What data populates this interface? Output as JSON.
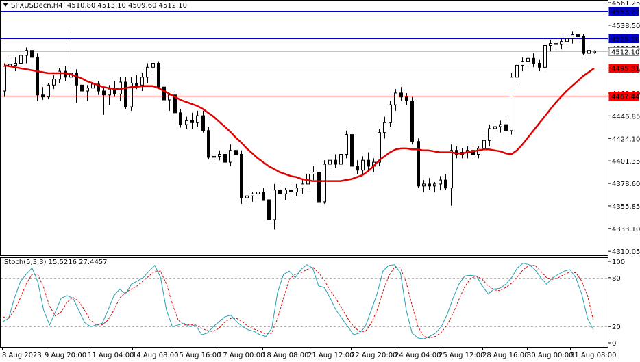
{
  "header": {
    "symbol": "SPXUSDecn,H4",
    "ohlc": "4510.80 4513.10 4509.60 4512.10"
  },
  "stoch_header": {
    "label": "Stoch(5,3,3) 15.5216 27.4457"
  },
  "colors": {
    "price_line": "#ff0000",
    "ma_line": "#e00000",
    "stoch_main": "#20a0b0",
    "stoch_signal": "#e00000",
    "blue_line": "#0000cc",
    "candle": "#000000",
    "grid_dash": "#b0b0b0"
  },
  "chart_data": [
    {
      "type": "candlestick",
      "title": "SPXUSDecn,H4",
      "ylim": [
        4306,
        4564
      ],
      "y_ticks": [
        "4561.25",
        "4538.50",
        "4515.75",
        "4493.00",
        "4469.90",
        "4446.85",
        "4424.10",
        "4401.35",
        "4378.60",
        "4355.85",
        "4333.10",
        "4310.05"
      ],
      "x_ticks": [
        "8 Aug 2023",
        "9 Aug 20:00",
        "11 Aug 04:00",
        "14 Aug 08:00",
        "15 Aug 16:00",
        "17 Aug 00:00",
        "18 Aug 08:00",
        "21 Aug 12:00",
        "22 Aug 20:00",
        "24 Aug 04:00",
        "25 Aug 12:00",
        "28 Aug 16:00",
        "30 Aug 00:00",
        "31 Aug 08:00"
      ],
      "price_levels": [
        {
          "label": "4553.22",
          "value": 4553.22,
          "color": "#0000cc",
          "style": "line"
        },
        {
          "label": "4525.10",
          "value": 4525.1,
          "color": "#0000cc",
          "style": "line"
        },
        {
          "label": "4512.10",
          "value": 4512.1,
          "color": "#c0c0c0",
          "style": "bid"
        },
        {
          "label": "4495.31",
          "value": 4495.31,
          "color": "#ff0000",
          "style": "line"
        },
        {
          "label": "4467.44",
          "value": 4467.44,
          "color": "#ff0000",
          "style": "line"
        }
      ],
      "candles": [
        {
          "o": 4472,
          "h": 4500,
          "l": 4466,
          "c": 4497
        },
        {
          "o": 4497,
          "h": 4504,
          "l": 4488,
          "c": 4499
        },
        {
          "o": 4498,
          "h": 4506,
          "l": 4492,
          "c": 4500
        },
        {
          "o": 4500,
          "h": 4512,
          "l": 4496,
          "c": 4508
        },
        {
          "o": 4508,
          "h": 4516,
          "l": 4500,
          "c": 4513
        },
        {
          "o": 4513,
          "h": 4516,
          "l": 4502,
          "c": 4506
        },
        {
          "o": 4506,
          "h": 4510,
          "l": 4462,
          "c": 4468
        },
        {
          "o": 4468,
          "h": 4476,
          "l": 4463,
          "c": 4466
        },
        {
          "o": 4466,
          "h": 4480,
          "l": 4464,
          "c": 4478
        },
        {
          "o": 4478,
          "h": 4488,
          "l": 4474,
          "c": 4484
        },
        {
          "o": 4484,
          "h": 4495,
          "l": 4480,
          "c": 4492
        },
        {
          "o": 4492,
          "h": 4497,
          "l": 4482,
          "c": 4486
        },
        {
          "o": 4486,
          "h": 4531,
          "l": 4478,
          "c": 4490
        },
        {
          "o": 4490,
          "h": 4494,
          "l": 4460,
          "c": 4478
        },
        {
          "o": 4478,
          "h": 4482,
          "l": 4468,
          "c": 4472
        },
        {
          "o": 4472,
          "h": 4478,
          "l": 4462,
          "c": 4475
        },
        {
          "o": 4475,
          "h": 4483,
          "l": 4470,
          "c": 4479
        },
        {
          "o": 4479,
          "h": 4482,
          "l": 4468,
          "c": 4472
        },
        {
          "o": 4472,
          "h": 4476,
          "l": 4448,
          "c": 4468
        },
        {
          "o": 4468,
          "h": 4478,
          "l": 4458,
          "c": 4474
        },
        {
          "o": 4474,
          "h": 4482,
          "l": 4466,
          "c": 4469
        },
        {
          "o": 4469,
          "h": 4486,
          "l": 4462,
          "c": 4481
        },
        {
          "o": 4481,
          "h": 4486,
          "l": 4454,
          "c": 4456
        },
        {
          "o": 4456,
          "h": 4486,
          "l": 4452,
          "c": 4480
        },
        {
          "o": 4480,
          "h": 4488,
          "l": 4474,
          "c": 4478
        },
        {
          "o": 4478,
          "h": 4490,
          "l": 4472,
          "c": 4486
        },
        {
          "o": 4486,
          "h": 4500,
          "l": 4480,
          "c": 4496
        },
        {
          "o": 4496,
          "h": 4503,
          "l": 4490,
          "c": 4500
        },
        {
          "o": 4500,
          "h": 4502,
          "l": 4474,
          "c": 4476
        },
        {
          "o": 4476,
          "h": 4479,
          "l": 4460,
          "c": 4463
        },
        {
          "o": 4463,
          "h": 4470,
          "l": 4452,
          "c": 4468
        },
        {
          "o": 4468,
          "h": 4472,
          "l": 4446,
          "c": 4450
        },
        {
          "o": 4450,
          "h": 4454,
          "l": 4435,
          "c": 4438
        },
        {
          "o": 4438,
          "h": 4446,
          "l": 4434,
          "c": 4442
        },
        {
          "o": 4442,
          "h": 4450,
          "l": 4434,
          "c": 4440
        },
        {
          "o": 4440,
          "h": 4452,
          "l": 4436,
          "c": 4447
        },
        {
          "o": 4447,
          "h": 4452,
          "l": 4430,
          "c": 4432
        },
        {
          "o": 4432,
          "h": 4436,
          "l": 4403,
          "c": 4405
        },
        {
          "o": 4405,
          "h": 4410,
          "l": 4402,
          "c": 4406
        },
        {
          "o": 4406,
          "h": 4412,
          "l": 4402,
          "c": 4408
        },
        {
          "o": 4408,
          "h": 4414,
          "l": 4398,
          "c": 4400
        },
        {
          "o": 4400,
          "h": 4418,
          "l": 4396,
          "c": 4412
        },
        {
          "o": 4412,
          "h": 4418,
          "l": 4404,
          "c": 4408
        },
        {
          "o": 4408,
          "h": 4412,
          "l": 4358,
          "c": 4364
        },
        {
          "o": 4364,
          "h": 4372,
          "l": 4356,
          "c": 4366
        },
        {
          "o": 4366,
          "h": 4370,
          "l": 4360,
          "c": 4368
        },
        {
          "o": 4368,
          "h": 4376,
          "l": 4364,
          "c": 4370
        },
        {
          "o": 4370,
          "h": 4374,
          "l": 4364,
          "c": 4362
        },
        {
          "o": 4362,
          "h": 4368,
          "l": 4338,
          "c": 4342
        },
        {
          "o": 4342,
          "h": 4378,
          "l": 4332,
          "c": 4372
        },
        {
          "o": 4372,
          "h": 4380,
          "l": 4364,
          "c": 4368
        },
        {
          "o": 4368,
          "h": 4374,
          "l": 4362,
          "c": 4372
        },
        {
          "o": 4372,
          "h": 4378,
          "l": 4364,
          "c": 4370
        },
        {
          "o": 4370,
          "h": 4378,
          "l": 4366,
          "c": 4374
        },
        {
          "o": 4374,
          "h": 4382,
          "l": 4368,
          "c": 4378
        },
        {
          "o": 4378,
          "h": 4392,
          "l": 4374,
          "c": 4388
        },
        {
          "o": 4388,
          "h": 4396,
          "l": 4382,
          "c": 4390
        },
        {
          "o": 4390,
          "h": 4398,
          "l": 4356,
          "c": 4360
        },
        {
          "o": 4360,
          "h": 4402,
          "l": 4358,
          "c": 4398
        },
        {
          "o": 4398,
          "h": 4406,
          "l": 4392,
          "c": 4402
        },
        {
          "o": 4402,
          "h": 4408,
          "l": 4394,
          "c": 4398
        },
        {
          "o": 4398,
          "h": 4412,
          "l": 4394,
          "c": 4408
        },
        {
          "o": 4408,
          "h": 4432,
          "l": 4404,
          "c": 4428
        },
        {
          "o": 4428,
          "h": 4432,
          "l": 4392,
          "c": 4396
        },
        {
          "o": 4396,
          "h": 4402,
          "l": 4388,
          "c": 4392
        },
        {
          "o": 4392,
          "h": 4406,
          "l": 4388,
          "c": 4402
        },
        {
          "o": 4402,
          "h": 4410,
          "l": 4392,
          "c": 4396
        },
        {
          "o": 4396,
          "h": 4404,
          "l": 4390,
          "c": 4400
        },
        {
          "o": 4400,
          "h": 4434,
          "l": 4396,
          "c": 4430
        },
        {
          "o": 4430,
          "h": 4446,
          "l": 4424,
          "c": 4440
        },
        {
          "o": 4440,
          "h": 4462,
          "l": 4436,
          "c": 4458
        },
        {
          "o": 4458,
          "h": 4474,
          "l": 4452,
          "c": 4470
        },
        {
          "o": 4470,
          "h": 4476,
          "l": 4462,
          "c": 4466
        },
        {
          "o": 4466,
          "h": 4470,
          "l": 4458,
          "c": 4462
        },
        {
          "o": 4462,
          "h": 4466,
          "l": 4418,
          "c": 4421
        },
        {
          "o": 4421,
          "h": 4424,
          "l": 4374,
          "c": 4376
        },
        {
          "o": 4376,
          "h": 4382,
          "l": 4370,
          "c": 4378
        },
        {
          "o": 4378,
          "h": 4384,
          "l": 4372,
          "c": 4376
        },
        {
          "o": 4376,
          "h": 4380,
          "l": 4370,
          "c": 4378
        },
        {
          "o": 4378,
          "h": 4386,
          "l": 4372,
          "c": 4382
        },
        {
          "o": 4382,
          "h": 4388,
          "l": 4372,
          "c": 4374
        },
        {
          "o": 4374,
          "h": 4418,
          "l": 4356,
          "c": 4412
        },
        {
          "o": 4412,
          "h": 4416,
          "l": 4404,
          "c": 4408
        },
        {
          "o": 4408,
          "h": 4414,
          "l": 4404,
          "c": 4410
        },
        {
          "o": 4410,
          "h": 4416,
          "l": 4404,
          "c": 4412
        },
        {
          "o": 4412,
          "h": 4416,
          "l": 4404,
          "c": 4408
        },
        {
          "o": 4408,
          "h": 4416,
          "l": 4404,
          "c": 4414
        },
        {
          "o": 4414,
          "h": 4426,
          "l": 4410,
          "c": 4422
        },
        {
          "o": 4422,
          "h": 4438,
          "l": 4416,
          "c": 4434
        },
        {
          "o": 4434,
          "h": 4442,
          "l": 4428,
          "c": 4436
        },
        {
          "o": 4436,
          "h": 4442,
          "l": 4430,
          "c": 4438
        },
        {
          "o": 4438,
          "h": 4444,
          "l": 4428,
          "c": 4432
        },
        {
          "o": 4432,
          "h": 4490,
          "l": 4428,
          "c": 4486
        },
        {
          "o": 4486,
          "h": 4503,
          "l": 4480,
          "c": 4498
        },
        {
          "o": 4498,
          "h": 4506,
          "l": 4492,
          "c": 4502
        },
        {
          "o": 4502,
          "h": 4508,
          "l": 4496,
          "c": 4505
        },
        {
          "o": 4505,
          "h": 4510,
          "l": 4496,
          "c": 4500
        },
        {
          "o": 4500,
          "h": 4504,
          "l": 4492,
          "c": 4496
        },
        {
          "o": 4496,
          "h": 4522,
          "l": 4492,
          "c": 4518
        },
        {
          "o": 4518,
          "h": 4524,
          "l": 4512,
          "c": 4520
        },
        {
          "o": 4520,
          "h": 4524,
          "l": 4514,
          "c": 4519
        },
        {
          "o": 4519,
          "h": 4526,
          "l": 4514,
          "c": 4522
        },
        {
          "o": 4522,
          "h": 4528,
          "l": 4518,
          "c": 4525
        },
        {
          "o": 4525,
          "h": 4532,
          "l": 4520,
          "c": 4529
        },
        {
          "o": 4529,
          "h": 4535,
          "l": 4522,
          "c": 4527
        },
        {
          "o": 4527,
          "h": 4530,
          "l": 4508,
          "c": 4510
        },
        {
          "o": 4510,
          "h": 4516,
          "l": 4507,
          "c": 4513
        },
        {
          "o": 4510.8,
          "h": 4513.1,
          "l": 4509.6,
          "c": 4512.1
        }
      ],
      "ma": [
        4498,
        4497,
        4496,
        4495,
        4494,
        4493,
        4492,
        4491,
        4490,
        4490,
        4490,
        4490,
        4489,
        4487,
        4485,
        4482,
        4480,
        4478,
        4476,
        4475,
        4474,
        4474,
        4475,
        4476,
        4476,
        4477,
        4477,
        4477,
        4475,
        4472,
        4469,
        4466,
        4463,
        4461,
        4459,
        4457,
        4454,
        4450,
        4446,
        4441,
        4436,
        4431,
        4425,
        4420,
        4414,
        4409,
        4404,
        4400,
        4396,
        4393,
        4390,
        4388,
        4386,
        4385,
        4383,
        4382,
        4381,
        4381,
        4381,
        4381,
        4381,
        4381,
        4382,
        4383,
        4385,
        4387,
        4391,
        4396,
        4402,
        4406,
        4410,
        4413,
        4414,
        4414,
        4413,
        4413,
        4412,
        4412,
        4411,
        4410,
        4410,
        4410,
        4409,
        4409,
        4410,
        4411,
        4412,
        4413,
        4413,
        4412,
        4411,
        4409,
        4408,
        4412,
        4418,
        4425,
        4432,
        4439,
        4446,
        4453,
        4460,
        4466,
        4472,
        4477,
        4482,
        4487,
        4491,
        4495
      ],
      "stoch_ylim": [
        0,
        100
      ],
      "stoch_ticks": [
        "100",
        "80",
        "20",
        "0"
      ],
      "stoch_main": [
        26,
        30,
        55,
        75,
        84,
        92,
        75,
        40,
        22,
        38,
        55,
        58,
        55,
        40,
        25,
        20,
        22,
        24,
        40,
        58,
        66,
        60,
        72,
        76,
        80,
        88,
        95,
        80,
        40,
        20,
        22,
        24,
        20,
        22,
        10,
        12,
        20,
        26,
        32,
        34,
        26,
        20,
        16,
        14,
        10,
        8,
        18,
        62,
        84,
        88,
        80,
        90,
        96,
        92,
        70,
        68,
        55,
        40,
        30,
        20,
        10,
        12,
        20,
        40,
        60,
        88,
        95,
        96,
        86,
        40,
        12,
        6,
        5,
        8,
        12,
        20,
        35,
        55,
        72,
        82,
        83,
        82,
        70,
        60,
        66,
        67,
        72,
        80,
        92,
        98,
        96,
        90,
        80,
        72,
        80,
        84,
        88,
        90,
        80,
        60,
        30,
        16
      ],
      "stoch_signal": [
        32,
        30,
        40,
        55,
        72,
        84,
        84,
        68,
        45,
        33,
        38,
        50,
        56,
        51,
        40,
        28,
        22,
        22,
        28,
        40,
        55,
        62,
        66,
        70,
        76,
        82,
        88,
        88,
        72,
        48,
        28,
        22,
        22,
        22,
        18,
        15,
        14,
        18,
        26,
        30,
        30,
        26,
        20,
        17,
        14,
        11,
        12,
        30,
        55,
        78,
        84,
        86,
        90,
        93,
        86,
        77,
        64,
        54,
        42,
        30,
        20,
        14,
        14,
        24,
        40,
        63,
        82,
        93,
        92,
        74,
        46,
        20,
        8,
        6,
        8,
        13,
        22,
        36,
        53,
        69,
        79,
        82,
        78,
        70,
        65,
        64,
        68,
        73,
        81,
        90,
        95,
        95,
        88,
        80,
        78,
        80,
        84,
        87,
        86,
        76,
        58,
        27
      ]
    }
  ]
}
